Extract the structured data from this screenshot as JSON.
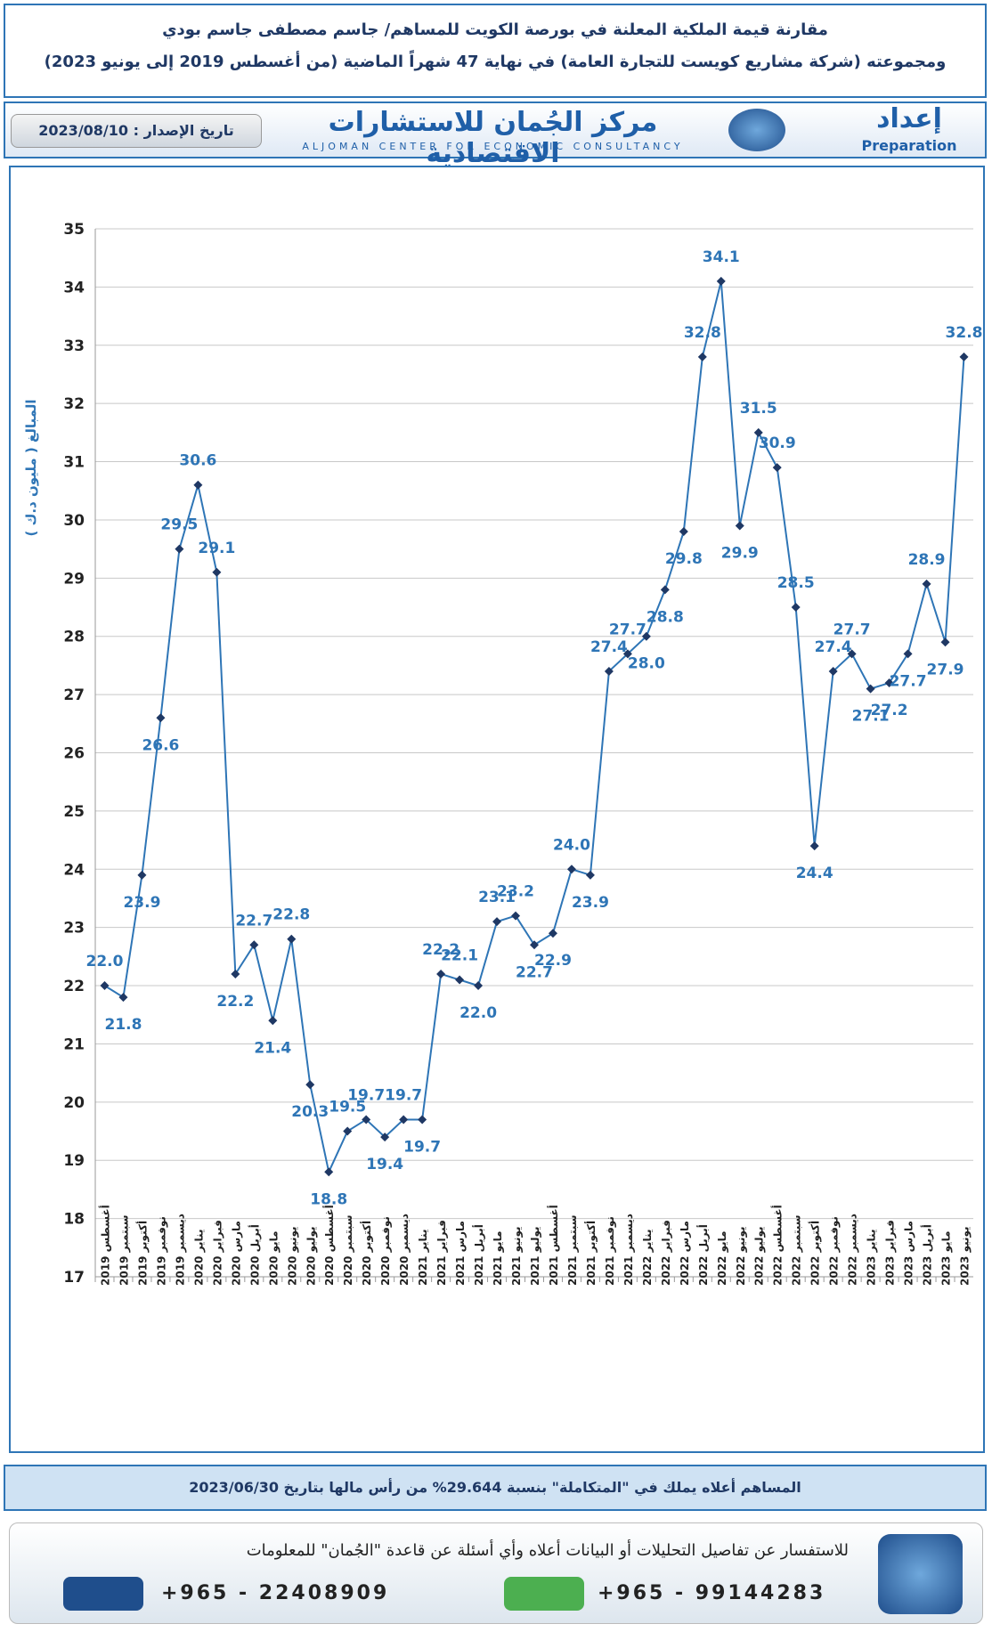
{
  "title_lines": [
    "مقارنة قيمة الملكية المعلنة في بورصة الكويت للمساهم/ جاسم مصطفى جاسم بودي",
    "ومجموعته (شركة مشاريع كويست للتجارة العامة) في نهاية 47 شهراً الماضية (من أغسطس 2019 إلى يونيو 2023)"
  ],
  "header": {
    "issue_date": "تاريخ الإصدار : 2023/08/10",
    "center_ar": "مركز الجُمان للاستشارات الاقتصادية",
    "center_en": "ALJOMAN CENTER FOR ECONOMIC CONSULTANCY",
    "prepared_ar": "إعداد",
    "prepared_en": "Preparation"
  },
  "chart_data": {
    "type": "line",
    "y_label": "المبالغ ( مليون د.ك )",
    "categories": [
      "أغسطس 2019",
      "سبتمبر 2019",
      "أكتوبر 2019",
      "نوفمبر 2019",
      "ديسمبر 2019",
      "يناير 2020",
      "فبراير 2020",
      "مارس 2020",
      "أبريل 2020",
      "مايو 2020",
      "يونيو 2020",
      "يوليو 2020",
      "أغسطس 2020",
      "سبتمبر 2020",
      "أكتوبر 2020",
      "نوفمبر 2020",
      "ديسمبر 2020",
      "يناير 2021",
      "فبراير 2021",
      "مارس 2021",
      "أبريل 2021",
      "مايو 2021",
      "يونيو 2021",
      "يوليو 2021",
      "أغسطس 2021",
      "سبتمبر 2021",
      "أكتوبر 2021",
      "نوفمبر 2021",
      "ديسمبر 2021",
      "يناير 2022",
      "فبراير 2022",
      "مارس 2022",
      "أبريل 2022",
      "مايو 2022",
      "يونيو 2022",
      "يوليو 2022",
      "أغسطس 2022",
      "سبتمبر 2022",
      "أكتوبر 2022",
      "نوفمبر 2022",
      "ديسمبر 2022",
      "يناير 2023",
      "فبراير 2023",
      "مارس 2023",
      "أبريل 2023",
      "مايو 2023",
      "يونيو 2023"
    ],
    "values": [
      22.0,
      21.8,
      23.9,
      26.6,
      29.5,
      30.6,
      29.1,
      22.2,
      22.7,
      21.4,
      22.8,
      20.3,
      18.8,
      19.5,
      19.7,
      19.4,
      19.7,
      19.7,
      22.2,
      22.1,
      22.0,
      23.1,
      23.2,
      22.7,
      22.9,
      24.0,
      23.9,
      27.4,
      27.7,
      28.0,
      28.8,
      29.8,
      32.8,
      34.1,
      29.9,
      31.5,
      30.9,
      28.5,
      24.4,
      27.4,
      27.7,
      27.1,
      27.2,
      27.7,
      28.9,
      27.9,
      32.8
    ],
    "value_labels": [
      "22.0",
      "21.8",
      "23.9",
      "26.6",
      "29.5",
      "30.6",
      "29.1",
      "22.2",
      "22.7",
      "21.4",
      "22.8",
      "20.3",
      "18.8",
      "19.5",
      "19.7",
      "19.4",
      "19.7",
      "19.7",
      "22.2",
      "22.1",
      "22.0",
      "23.1",
      "23.2",
      "22.7",
      "22.9",
      "24.0",
      "23.9",
      "27.4",
      "27.7",
      "28.0",
      "28.8",
      "29.8",
      "32.8",
      "34.1",
      "29.9",
      "31.5",
      "30.9",
      "28.5",
      "24.4",
      "27.4",
      "27.7",
      "27.1",
      "27.2",
      "27.7",
      "28.9",
      "27.9",
      "32.8"
    ],
    "color": "#2e75b6",
    "marker_color": "#1f3864",
    "label_color": "#2e75b6",
    "ylim": [
      17,
      35
    ],
    "yticks": [
      17,
      18,
      19,
      20,
      21,
      22,
      23,
      24,
      25,
      26,
      27,
      28,
      29,
      30,
      31,
      32,
      33,
      34,
      35
    ],
    "grid": true
  },
  "note": "المساهم أعلاه يملك في \"المتكاملة\" بنسبة 29.644% من رأس مالها بتاريخ 2023/06/30",
  "contact": {
    "question": "للاستفسار عن تفاصيل التحليلات أو البيانات أعلاه وأي أسئلة عن قاعدة \"الجُمان\" للمعلومات",
    "phone": "+965 - 22408909",
    "mobile": "+965 - 99144283"
  }
}
